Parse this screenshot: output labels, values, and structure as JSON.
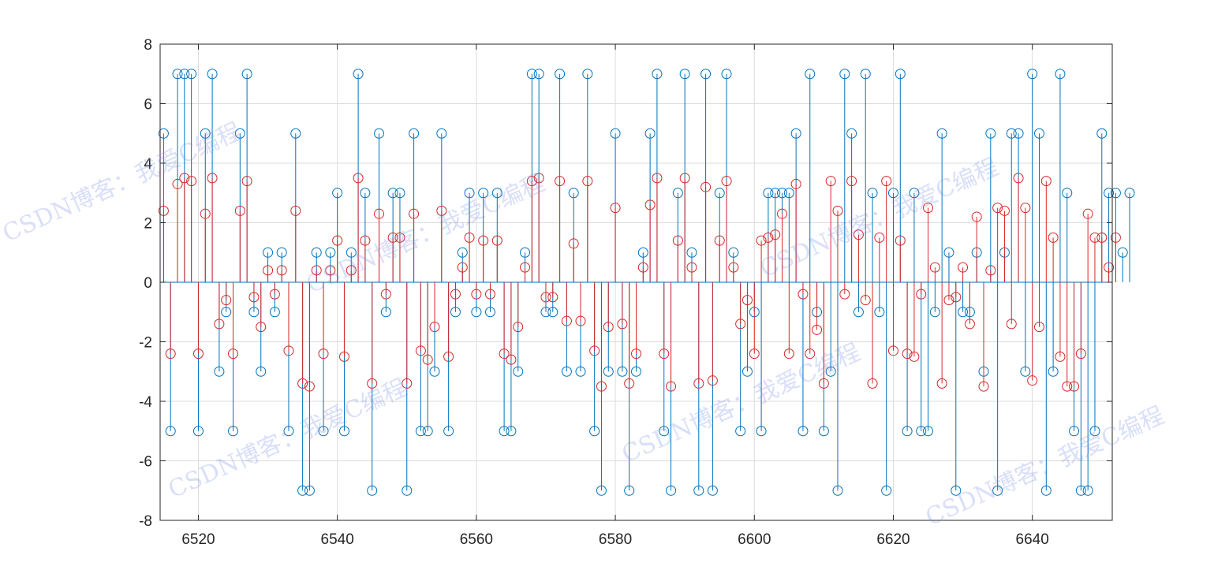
{
  "watermark": {
    "text": "CSDN博客：我爱C编程",
    "color": "#7f8ee6"
  },
  "chart_data": {
    "type": "stem",
    "title": "",
    "xlabel": "",
    "ylabel": "",
    "xlim": [
      6514.5,
      6651.5
    ],
    "ylim": [
      -8,
      8
    ],
    "xticks": [
      6520,
      6540,
      6560,
      6580,
      6600,
      6620,
      6640
    ],
    "yticks": [
      -8,
      -6,
      -4,
      -2,
      0,
      2,
      4,
      6,
      8
    ],
    "grid": true,
    "x_start": 6515,
    "series": [
      {
        "color": "#0072bd",
        "marker": "circle",
        "values": [
          5,
          -5,
          7,
          7,
          7,
          -5,
          5,
          7,
          -3,
          -1,
          -5,
          5,
          7,
          -1,
          -3,
          1,
          -1,
          1,
          -5,
          5,
          -7,
          -7,
          1,
          -5,
          1,
          3,
          -5,
          1,
          7,
          3,
          -7,
          5,
          -1,
          3,
          3,
          -7,
          5,
          -5,
          -5,
          -3,
          5,
          -5,
          -1,
          1,
          3,
          -1,
          3,
          -1,
          3,
          -5,
          -5,
          -3,
          1,
          7,
          7,
          -1,
          -1,
          7,
          -3,
          3,
          -3,
          7,
          -5,
          -7,
          -3,
          5,
          -3,
          -7,
          -3,
          1,
          5,
          7,
          -5,
          -7,
          3,
          7,
          1,
          -7,
          7,
          -7,
          3,
          7,
          1,
          -5,
          -3,
          -1,
          -5,
          3,
          3,
          3,
          3,
          5,
          -5,
          7,
          -1,
          -5,
          -3,
          -7,
          7,
          5,
          -1,
          7,
          3,
          -1,
          -7,
          3,
          7,
          -5,
          3,
          -5,
          -5,
          -1,
          5,
          1,
          -7,
          -1,
          -1,
          1,
          -3,
          5,
          -7,
          1,
          5,
          5,
          -3,
          7,
          5,
          -7,
          -3,
          7,
          3,
          -5,
          -7,
          -7,
          -5,
          5,
          3,
          3,
          1,
          3
        ]
      },
      {
        "color": "#d62728",
        "marker": "circle",
        "values": [
          2.4,
          -2.4,
          3.3,
          3.5,
          3.4,
          -2.4,
          2.3,
          3.5,
          -1.4,
          -0.6,
          -2.4,
          2.4,
          3.4,
          -0.5,
          -1.5,
          0.4,
          -0.4,
          0.4,
          -2.3,
          2.4,
          -3.4,
          -3.5,
          0.4,
          -2.4,
          0.4,
          1.4,
          -2.5,
          0.4,
          3.5,
          1.4,
          -3.4,
          2.3,
          -0.4,
          1.5,
          1.5,
          -3.4,
          2.3,
          -2.3,
          -2.6,
          -1.5,
          2.4,
          -2.5,
          -0.4,
          0.5,
          1.5,
          -0.4,
          1.4,
          -0.4,
          1.4,
          -2.4,
          -2.6,
          -1.5,
          0.5,
          3.4,
          3.5,
          -0.5,
          -0.5,
          3.4,
          -1.3,
          1.3,
          -1.3,
          3.4,
          -2.3,
          -3.5,
          -1.5,
          2.5,
          -1.4,
          -3.4,
          -2.4,
          0.5,
          2.6,
          3.5,
          -2.4,
          -3.5,
          1.4,
          3.5,
          0.5,
          -3.4,
          3.2,
          -3.3,
          1.4,
          3.4,
          0.5,
          -1.4,
          -0.6,
          -2.4,
          1.4,
          1.5,
          1.6,
          2.3,
          -2.4,
          3.3,
          -0.4,
          -2.4,
          -1.6,
          -3.4,
          3.4,
          2.4,
          -0.4,
          3.4,
          1.6,
          -0.6,
          -3.4,
          1.5,
          3.4,
          -2.3,
          1.4,
          -2.4,
          -2.5,
          -0.4,
          2.5,
          0.5,
          -3.4,
          -0.6,
          -0.5,
          0.5,
          -1.4,
          2.2,
          -3.5,
          0.4,
          2.5,
          2.4,
          -1.4,
          3.5,
          2.5,
          -3.3,
          -1.5,
          3.4,
          1.5,
          -2.5,
          -3.5,
          -3.5,
          -2.4,
          2.3,
          1.5,
          1.5,
          0.5,
          1.5
        ]
      }
    ]
  }
}
